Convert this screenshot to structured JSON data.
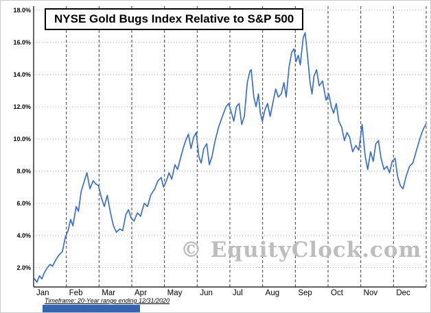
{
  "chart_data": {
    "type": "line",
    "title": "NYSE Gold Bugs Index Relative to S&P 500",
    "watermark": "© EquityClock.com",
    "footnote": "Timeframe: 20-Year range ending 12/31/2020",
    "x_axis": {
      "labels": [
        "Jan",
        "Feb",
        "Mar",
        "Apr",
        "May",
        "Jun",
        "Jul",
        "Aug",
        "Sep",
        "Oct",
        "Nov",
        "Dec"
      ],
      "range": [
        0,
        12
      ],
      "gridline_style": "dashed"
    },
    "y_axis": {
      "unit": "%",
      "ticks": [
        18,
        16,
        14,
        12,
        10,
        8,
        6,
        4,
        2
      ],
      "tick_labels": [
        "18.0%",
        "16.0%",
        "14.0%",
        "12.0%",
        "10.0%",
        "8.0%",
        "6.0%",
        "4.0%",
        "2.0%"
      ],
      "range": [
        0.8,
        18.25
      ],
      "gridline_style": "dotted"
    },
    "series": [
      {
        "name": "NYSE Gold Bugs Index Relative to S&P 500",
        "color": "#3a6fc8",
        "points": [
          [
            0.03,
            1.3
          ],
          [
            0.1,
            1.1
          ],
          [
            0.18,
            1.5
          ],
          [
            0.25,
            1.3
          ],
          [
            0.33,
            1.7
          ],
          [
            0.42,
            2.0
          ],
          [
            0.5,
            2.2
          ],
          [
            0.58,
            2.1
          ],
          [
            0.68,
            2.5
          ],
          [
            0.78,
            2.8
          ],
          [
            0.88,
            3.0
          ],
          [
            0.97,
            3.9
          ],
          [
            1.05,
            4.3
          ],
          [
            1.13,
            5.0
          ],
          [
            1.2,
            4.6
          ],
          [
            1.3,
            5.8
          ],
          [
            1.37,
            5.5
          ],
          [
            1.45,
            6.7
          ],
          [
            1.55,
            7.4
          ],
          [
            1.63,
            7.9
          ],
          [
            1.72,
            6.9
          ],
          [
            1.82,
            7.4
          ],
          [
            1.9,
            7.2
          ],
          [
            1.98,
            7.1
          ],
          [
            2.08,
            6.3
          ],
          [
            2.16,
            5.8
          ],
          [
            2.25,
            6.5
          ],
          [
            2.35,
            5.4
          ],
          [
            2.44,
            4.6
          ],
          [
            2.53,
            4.2
          ],
          [
            2.63,
            4.4
          ],
          [
            2.72,
            4.3
          ],
          [
            2.82,
            5.3
          ],
          [
            2.9,
            5.6
          ],
          [
            2.98,
            5.1
          ],
          [
            3.07,
            4.9
          ],
          [
            3.17,
            5.4
          ],
          [
            3.27,
            5.2
          ],
          [
            3.38,
            6.0
          ],
          [
            3.48,
            5.8
          ],
          [
            3.58,
            6.5
          ],
          [
            3.7,
            6.9
          ],
          [
            3.8,
            7.4
          ],
          [
            3.9,
            7.6
          ],
          [
            3.97,
            7.0
          ],
          [
            4.06,
            7.4
          ],
          [
            4.14,
            7.9
          ],
          [
            4.22,
            7.5
          ],
          [
            4.32,
            8.4
          ],
          [
            4.4,
            8.1
          ],
          [
            4.49,
            8.8
          ],
          [
            4.57,
            9.4
          ],
          [
            4.65,
            9.9
          ],
          [
            4.73,
            10.3
          ],
          [
            4.81,
            9.4
          ],
          [
            4.89,
            10.1
          ],
          [
            4.97,
            10.4
          ],
          [
            5.05,
            8.9
          ],
          [
            5.12,
            8.5
          ],
          [
            5.2,
            9.4
          ],
          [
            5.29,
            9.7
          ],
          [
            5.37,
            8.4
          ],
          [
            5.45,
            8.9
          ],
          [
            5.55,
            9.9
          ],
          [
            5.65,
            10.7
          ],
          [
            5.77,
            11.4
          ],
          [
            5.88,
            12.0
          ],
          [
            5.96,
            12.2
          ],
          [
            6.05,
            11.6
          ],
          [
            6.12,
            11.1
          ],
          [
            6.2,
            12.0
          ],
          [
            6.28,
            12.2
          ],
          [
            6.36,
            10.9
          ],
          [
            6.44,
            11.4
          ],
          [
            6.53,
            13.5
          ],
          [
            6.61,
            14.2
          ],
          [
            6.65,
            14.3
          ],
          [
            6.73,
            12.6
          ],
          [
            6.8,
            12.0
          ],
          [
            6.87,
            12.8
          ],
          [
            6.93,
            11.6
          ],
          [
            6.99,
            11.1
          ],
          [
            7.07,
            11.8
          ],
          [
            7.15,
            12.2
          ],
          [
            7.23,
            11.4
          ],
          [
            7.31,
            12.2
          ],
          [
            7.4,
            13.1
          ],
          [
            7.48,
            12.6
          ],
          [
            7.57,
            12.8
          ],
          [
            7.65,
            13.5
          ],
          [
            7.72,
            12.6
          ],
          [
            7.81,
            14.5
          ],
          [
            7.89,
            15.4
          ],
          [
            7.96,
            15.6
          ],
          [
            8.02,
            14.8
          ],
          [
            8.09,
            15.2
          ],
          [
            8.15,
            14.6
          ],
          [
            8.24,
            16.3
          ],
          [
            8.3,
            16.6
          ],
          [
            8.37,
            15.2
          ],
          [
            8.45,
            13.5
          ],
          [
            8.51,
            12.8
          ],
          [
            8.57,
            13.9
          ],
          [
            8.65,
            14.3
          ],
          [
            8.73,
            13.3
          ],
          [
            8.83,
            13.6
          ],
          [
            8.94,
            12.4
          ],
          [
            9.02,
            12.8
          ],
          [
            9.1,
            12.0
          ],
          [
            9.17,
            11.6
          ],
          [
            9.25,
            12.2
          ],
          [
            9.33,
            11.1
          ],
          [
            9.42,
            10.7
          ],
          [
            9.5,
            9.9
          ],
          [
            9.58,
            10.4
          ],
          [
            9.66,
            10.1
          ],
          [
            9.75,
            9.2
          ],
          [
            9.85,
            9.6
          ],
          [
            9.94,
            9.3
          ],
          [
            10.04,
            10.9
          ],
          [
            10.13,
            9.0
          ],
          [
            10.21,
            8.1
          ],
          [
            10.3,
            9.2
          ],
          [
            10.38,
            8.6
          ],
          [
            10.46,
            9.7
          ],
          [
            10.54,
            9.9
          ],
          [
            10.62,
            8.8
          ],
          [
            10.71,
            8.1
          ],
          [
            10.8,
            8.3
          ],
          [
            10.88,
            7.9
          ],
          [
            10.96,
            8.6
          ],
          [
            11.05,
            8.8
          ],
          [
            11.12,
            7.7
          ],
          [
            11.21,
            7.1
          ],
          [
            11.29,
            6.9
          ],
          [
            11.39,
            7.7
          ],
          [
            11.49,
            8.3
          ],
          [
            11.59,
            8.5
          ],
          [
            11.69,
            9.2
          ],
          [
            11.79,
            9.9
          ],
          [
            11.87,
            10.4
          ],
          [
            11.93,
            10.7
          ],
          [
            11.99,
            10.9
          ]
        ]
      }
    ],
    "colors": {
      "line": "#3a6fc8",
      "grid_horizontal": "#a9a9a9",
      "grid_vertical": "#3b3b3b",
      "axis": "#000000",
      "watermark": "#bdbdbd",
      "blue_bar": "#3565b1"
    }
  }
}
